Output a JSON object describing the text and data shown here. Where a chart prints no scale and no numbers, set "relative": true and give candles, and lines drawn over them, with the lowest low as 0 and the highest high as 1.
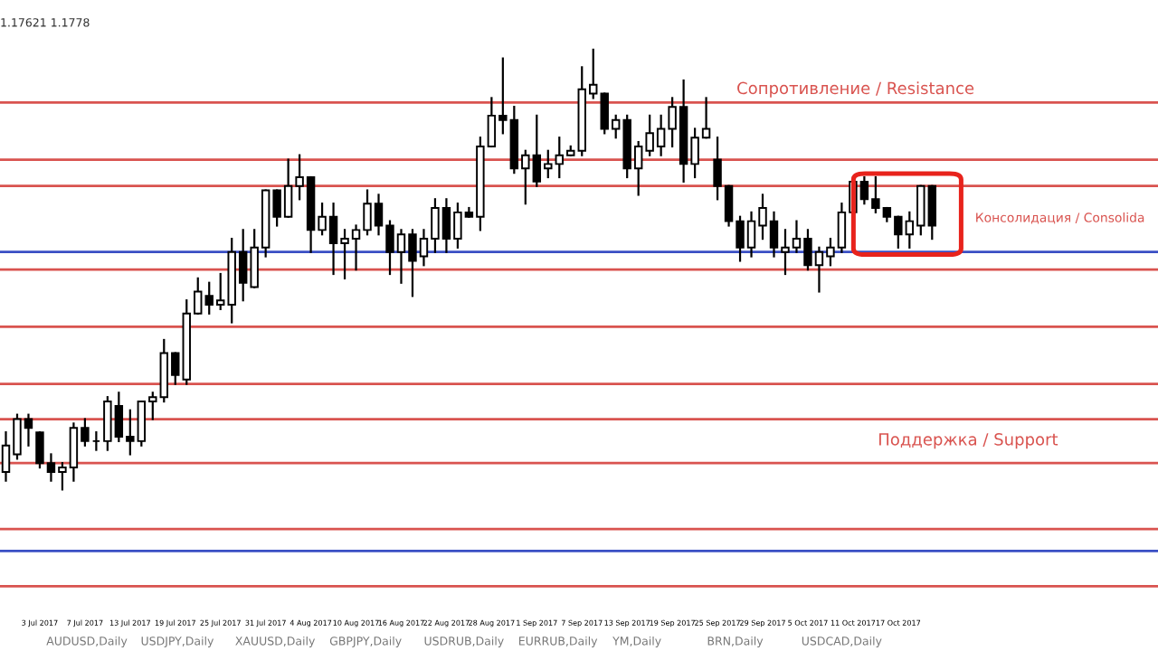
{
  "chart_data": {
    "type": "candlestick",
    "relative": true,
    "tick_labels": "x",
    "grid": false,
    "categories": [
      null,
      null,
      null,
      "3 Jul 2017",
      null,
      null,
      null,
      "7 Jul 2017",
      null,
      null,
      null,
      "13 Jul 2017",
      null,
      null,
      null,
      "19 Jul 2017",
      null,
      null,
      null,
      "25 Jul 2017",
      null,
      null,
      null,
      "31 Jul 2017",
      null,
      null,
      null,
      "4 Aug 2017",
      null,
      null,
      null,
      "10 Aug 2017",
      null,
      null,
      null,
      "16 Aug 2017",
      null,
      null,
      null,
      "22 Aug 2017",
      null,
      null,
      null,
      "28 Aug 2017",
      null,
      null,
      null,
      "1 Sep 2017",
      null,
      null,
      null,
      "7 Sep 2017",
      null,
      null,
      null,
      "13 Sep 2017",
      null,
      null,
      null,
      "19 Sep 2017",
      null,
      null,
      null,
      "25 Sep 2017",
      null,
      null,
      null,
      "29 Sep 2017",
      null,
      null,
      null,
      "5 Oct 2017",
      null,
      null,
      null,
      "11 Oct 2017",
      null,
      null,
      null,
      "17 Oct 2017",
      null,
      null,
      null
    ],
    "ohlc": [
      [
        0.04,
        0.13,
        0.02,
        0.1
      ],
      [
        0.08,
        0.17,
        0.07,
        0.16
      ],
      [
        0.16,
        0.17,
        0.1,
        0.14
      ],
      [
        0.13,
        0.13,
        0.05,
        0.06
      ],
      [
        0.06,
        0.08,
        0.02,
        0.04
      ],
      [
        0.04,
        0.06,
        0.0,
        0.05
      ],
      [
        0.05,
        0.15,
        0.02,
        0.14
      ],
      [
        0.14,
        0.16,
        0.1,
        0.11
      ],
      [
        0.11,
        0.13,
        0.09,
        0.11
      ],
      [
        0.11,
        0.21,
        0.09,
        0.2
      ],
      [
        0.19,
        0.22,
        0.11,
        0.12
      ],
      [
        0.12,
        0.18,
        0.08,
        0.11
      ],
      [
        0.11,
        0.2,
        0.1,
        0.2
      ],
      [
        0.2,
        0.22,
        0.16,
        0.21
      ],
      [
        0.21,
        0.34,
        0.2,
        0.31
      ],
      [
        0.31,
        0.31,
        0.24,
        0.26
      ],
      [
        0.25,
        0.43,
        0.24,
        0.4
      ],
      [
        0.4,
        0.48,
        0.4,
        0.45
      ],
      [
        0.44,
        0.47,
        0.4,
        0.42
      ],
      [
        0.42,
        0.49,
        0.41,
        0.43
      ],
      [
        0.42,
        0.57,
        0.38,
        0.54
      ],
      [
        0.54,
        0.59,
        0.43,
        0.47
      ],
      [
        0.46,
        0.59,
        0.46,
        0.55
      ],
      [
        0.55,
        0.68,
        0.53,
        0.68
      ],
      [
        0.68,
        0.68,
        0.6,
        0.62
      ],
      [
        0.62,
        0.75,
        0.62,
        0.69
      ],
      [
        0.69,
        0.76,
        0.66,
        0.71
      ],
      [
        0.71,
        0.71,
        0.54,
        0.59
      ],
      [
        0.59,
        0.65,
        0.58,
        0.62
      ],
      [
        0.62,
        0.65,
        0.49,
        0.56
      ],
      [
        0.56,
        0.59,
        0.48,
        0.57
      ],
      [
        0.57,
        0.6,
        0.5,
        0.59
      ],
      [
        0.59,
        0.68,
        0.58,
        0.65
      ],
      [
        0.65,
        0.67,
        0.58,
        0.6
      ],
      [
        0.6,
        0.61,
        0.49,
        0.54
      ],
      [
        0.54,
        0.59,
        0.47,
        0.58
      ],
      [
        0.58,
        0.59,
        0.44,
        0.52
      ],
      [
        0.53,
        0.59,
        0.51,
        0.57
      ],
      [
        0.57,
        0.66,
        0.54,
        0.64
      ],
      [
        0.64,
        0.66,
        0.54,
        0.57
      ],
      [
        0.57,
        0.65,
        0.55,
        0.63
      ],
      [
        0.63,
        0.64,
        0.62,
        0.62
      ],
      [
        0.62,
        0.8,
        0.59,
        0.78
      ],
      [
        0.78,
        0.89,
        0.78,
        0.85
      ],
      [
        0.85,
        0.98,
        0.81,
        0.84
      ],
      [
        0.84,
        0.87,
        0.72,
        0.73
      ],
      [
        0.73,
        0.77,
        0.65,
        0.76
      ],
      [
        0.76,
        0.85,
        0.69,
        0.7
      ],
      [
        0.73,
        0.77,
        0.71,
        0.74
      ],
      [
        0.74,
        0.8,
        0.71,
        0.76
      ],
      [
        0.76,
        0.78,
        0.76,
        0.77
      ],
      [
        0.77,
        0.96,
        0.76,
        0.91
      ],
      [
        0.9,
        1.0,
        0.89,
        0.92
      ],
      [
        0.9,
        0.9,
        0.81,
        0.82
      ],
      [
        0.82,
        0.85,
        0.8,
        0.84
      ],
      [
        0.84,
        0.85,
        0.71,
        0.73
      ],
      [
        0.73,
        0.79,
        0.67,
        0.78
      ],
      [
        0.77,
        0.85,
        0.76,
        0.81
      ],
      [
        0.78,
        0.85,
        0.76,
        0.82
      ],
      [
        0.82,
        0.89,
        0.78,
        0.87
      ],
      [
        0.87,
        0.93,
        0.7,
        0.74
      ],
      [
        0.74,
        0.82,
        0.71,
        0.8
      ],
      [
        0.8,
        0.89,
        0.8,
        0.82
      ],
      [
        0.75,
        0.8,
        0.66,
        0.69
      ],
      [
        0.69,
        0.69,
        0.6,
        0.61
      ],
      [
        0.61,
        0.62,
        0.52,
        0.55
      ],
      [
        0.55,
        0.63,
        0.53,
        0.61
      ],
      [
        0.6,
        0.67,
        0.57,
        0.64
      ],
      [
        0.61,
        0.63,
        0.53,
        0.55
      ],
      [
        0.54,
        0.59,
        0.49,
        0.55
      ],
      [
        0.55,
        0.61,
        0.54,
        0.57
      ],
      [
        0.57,
        0.59,
        0.5,
        0.51
      ],
      [
        0.51,
        0.55,
        0.45,
        0.54
      ],
      [
        0.53,
        0.57,
        0.51,
        0.55
      ],
      [
        0.55,
        0.65,
        0.54,
        0.63
      ],
      [
        0.63,
        0.71,
        0.62,
        0.7
      ],
      [
        0.7,
        0.71,
        0.65,
        0.66
      ],
      [
        0.66,
        0.71,
        0.63,
        0.64
      ],
      [
        0.64,
        0.64,
        0.61,
        0.62
      ],
      [
        0.62,
        0.62,
        0.55,
        0.58
      ],
      [
        0.58,
        0.63,
        0.55,
        0.61
      ],
      [
        0.6,
        0.69,
        0.58,
        0.69
      ],
      [
        0.69,
        0.69,
        0.57,
        0.6
      ]
    ],
    "ref_lines": [
      {
        "axis": "y",
        "value": 0.88,
        "color": "#d9534f"
      },
      {
        "axis": "y",
        "value": 0.75,
        "color": "#d9534f"
      },
      {
        "axis": "y",
        "value": 0.69,
        "color": "#d9534f"
      },
      {
        "axis": "y",
        "value": 0.54,
        "color": "#3a4fc4"
      },
      {
        "axis": "y",
        "value": 0.5,
        "color": "#d9534f"
      },
      {
        "axis": "y",
        "value": 0.37,
        "color": "#d9534f"
      },
      {
        "axis": "y",
        "value": 0.24,
        "color": "#d9534f"
      },
      {
        "axis": "y",
        "value": 0.16,
        "color": "#d9534f"
      },
      {
        "axis": "y",
        "value": 0.06,
        "color": "#d9534f"
      },
      {
        "axis": "y",
        "value": -0.09,
        "color": "#d9534f"
      },
      {
        "axis": "y",
        "value": -0.14,
        "color": "#3a4fc4"
      },
      {
        "axis": "y",
        "value": -0.22,
        "color": "#d9534f"
      }
    ],
    "annotations": [
      "Сопротивление / Resistance",
      "Консолидация / Consolida",
      "Поддержка / Support",
      "1.17621 1.1778",
      "AUDUSD,Daily",
      "USDJPY,Daily",
      "XAUUSD,Daily",
      "GBPJPY,Daily",
      "USDRUB,Daily",
      "EURRUB,Daily",
      "YM,Daily",
      "BRN,Daily",
      "USDCAD,Daily"
    ]
  }
}
